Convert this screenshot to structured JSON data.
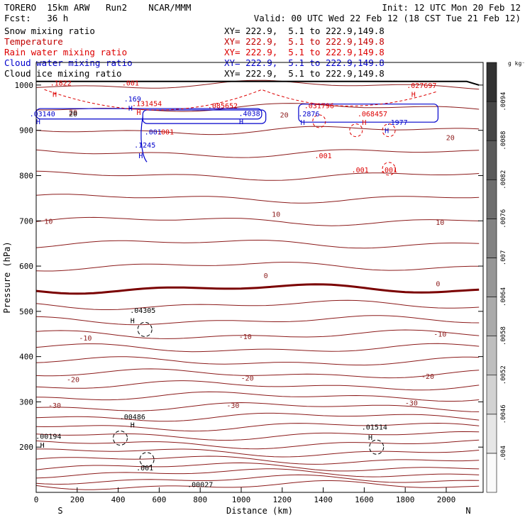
{
  "header": {
    "model": "TORERO  15km ARW   Run2    NCAR/MMM",
    "init": "Init: 12 UTC Mon 20 Feb 12",
    "fcst": "Fcst:   36 h",
    "valid": "Valid: 00 UTC Wed 22 Feb 12 (18 CST Tue 21 Feb 12)"
  },
  "fields": [
    {
      "name": "Snow mixing ratio",
      "xy": "XY= 222.9,  5.1 to 222.9,149.8",
      "color": "#000000"
    },
    {
      "name": "Temperature",
      "xy": "XY= 222.9,  5.1 to 222.9,149.8",
      "color": "#c00000"
    },
    {
      "name": "Rain water mixing ratio",
      "xy": "XY= 222.9,  5.1 to 222.9,149.8",
      "color": "#dd0000"
    },
    {
      "name": "Cloud water mixing ratio",
      "xy": "XY= 222.9,  5.1 to 222.9,149.8",
      "color": "#0000cc"
    },
    {
      "name": "Cloud ice mixing ratio",
      "xy": "XY= 222.9,  5.1 to 222.9,149.8",
      "color": "#000000"
    }
  ],
  "chart_data": {
    "type": "contour",
    "xlabel": "Distance (km)",
    "ylabel": "Pressure (hPa)",
    "xlim": [
      0,
      2180
    ],
    "ylim": [
      1050,
      100
    ],
    "x_ticks": [
      0,
      200,
      400,
      600,
      800,
      1000,
      1200,
      1400,
      1600,
      1800,
      2000
    ],
    "y_ticks": [
      200,
      300,
      400,
      500,
      600,
      700,
      800,
      900,
      1000
    ],
    "left_end_label": "S",
    "right_end_label": "N",
    "colorbar": {
      "unit": "g kg⁻¹",
      "labels": [
        ".004",
        ".0046",
        ".0052",
        ".0058",
        ".0064",
        ".007",
        ".0076",
        ".0082",
        ".0088",
        ".0094"
      ]
    },
    "temperature_contour_labels": [
      {
        "text": "-30",
        "x": 90,
        "p": 293
      },
      {
        "text": "-30",
        "x": 960,
        "p": 293
      },
      {
        "text": "-30",
        "x": 1830,
        "p": 298
      },
      {
        "text": "-20",
        "x": 180,
        "p": 350
      },
      {
        "text": "-20",
        "x": 1030,
        "p": 353
      },
      {
        "text": "-20",
        "x": 1910,
        "p": 357
      },
      {
        "text": "-10",
        "x": 240,
        "p": 442
      },
      {
        "text": "-10",
        "x": 1020,
        "p": 445
      },
      {
        "text": "-10",
        "x": 1970,
        "p": 450
      },
      {
        "text": "0",
        "x": 1120,
        "p": 580
      },
      {
        "text": "0",
        "x": 1960,
        "p": 562
      },
      {
        "text": "10",
        "x": 60,
        "p": 700
      },
      {
        "text": "10",
        "x": 1170,
        "p": 715
      },
      {
        "text": "10",
        "x": 1970,
        "p": 697
      },
      {
        "text": "20",
        "x": 1210,
        "p": 935
      },
      {
        "text": "20",
        "x": 2020,
        "p": 885
      },
      {
        "text": "20",
        "x": 180,
        "p": 940
      }
    ],
    "value_labels": [
      {
        "text": ".00027",
        "x": 800,
        "p": 118,
        "color": "#000000"
      },
      {
        "text": ".001",
        "x": 530,
        "p": 155,
        "color": "#000000"
      },
      {
        "text": "H",
        "x": 30,
        "p": 205,
        "color": "#000000"
      },
      {
        "text": ".00194",
        "x": 60,
        "p": 225,
        "color": "#000000"
      },
      {
        "text": "H",
        "x": 470,
        "p": 250,
        "color": "#000000"
      },
      {
        "text": ".00486",
        "x": 470,
        "p": 268,
        "color": "#000000"
      },
      {
        "text": "H",
        "x": 1630,
        "p": 222,
        "color": "#000000"
      },
      {
        "text": ".01514",
        "x": 1650,
        "p": 245,
        "color": "#000000"
      },
      {
        "text": "H",
        "x": 470,
        "p": 480,
        "color": "#000000"
      },
      {
        "text": ".04305",
        "x": 520,
        "p": 503,
        "color": "#000000"
      },
      {
        "text": "H",
        "x": 510,
        "p": 845,
        "color": "#0000cc"
      },
      {
        "text": ".1245",
        "x": 530,
        "p": 868,
        "color": "#0000cc"
      },
      {
        "text": ".001",
        "x": 570,
        "p": 897,
        "color": "#0000cc"
      },
      {
        "text": ".001",
        "x": 630,
        "p": 897,
        "color": "#dd0000"
      },
      {
        "text": "H",
        "x": 10,
        "p": 920,
        "color": "#0000cc"
      },
      {
        "text": ".03140",
        "x": 30,
        "p": 937,
        "color": "#0000cc"
      },
      {
        "text": "20",
        "x": 180,
        "p": 937,
        "color": "#000000"
      },
      {
        "text": "H",
        "x": 460,
        "p": 950,
        "color": "#0000cc"
      },
      {
        "text": ".169",
        "x": 470,
        "p": 970,
        "color": "#0000cc"
      },
      {
        "text": "H",
        "x": 500,
        "p": 940,
        "color": "#dd0000"
      },
      {
        "text": ".131454",
        "x": 540,
        "p": 960,
        "color": "#dd0000"
      },
      {
        "text": "H",
        "x": 90,
        "p": 980,
        "color": "#dd0000"
      },
      {
        "text": ".1822",
        "x": 120,
        "p": 1005,
        "color": "#dd0000"
      },
      {
        "text": ".001",
        "x": 460,
        "p": 1005,
        "color": "#dd0000"
      },
      {
        "text": ".085652",
        "x": 910,
        "p": 955,
        "color": "#dd0000"
      },
      {
        "text": "H",
        "x": 1000,
        "p": 920,
        "color": "#0000cc"
      },
      {
        "text": ".4038",
        "x": 1040,
        "p": 938,
        "color": "#0000cc"
      },
      {
        "text": "H",
        "x": 1300,
        "p": 918,
        "color": "#0000cc"
      },
      {
        "text": ".2876",
        "x": 1330,
        "p": 937,
        "color": "#0000cc"
      },
      {
        "text": ".031796",
        "x": 1380,
        "p": 955,
        "color": "#dd0000"
      },
      {
        "text": ".001",
        "x": 1400,
        "p": 845,
        "color": "#dd0000"
      },
      {
        "text": ".001",
        "x": 1580,
        "p": 813,
        "color": "#dd0000"
      },
      {
        "text": ".001",
        "x": 1720,
        "p": 813,
        "color": "#dd0000"
      },
      {
        "text": "H",
        "x": 1600,
        "p": 918,
        "color": "#dd0000"
      },
      {
        "text": ".068457",
        "x": 1640,
        "p": 937,
        "color": "#dd0000"
      },
      {
        "text": "H",
        "x": 1710,
        "p": 900,
        "color": "#0000cc"
      },
      {
        "text": ".1977",
        "x": 1760,
        "p": 918,
        "color": "#0000cc"
      },
      {
        "text": "H",
        "x": 1840,
        "p": 980,
        "color": "#dd0000"
      },
      {
        "text": ".027697",
        "x": 1880,
        "p": 1000,
        "color": "#dd0000"
      }
    ]
  }
}
